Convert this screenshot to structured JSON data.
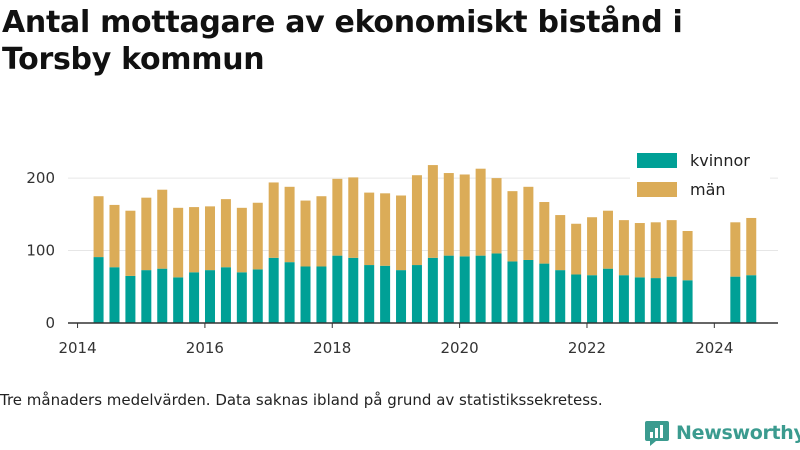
{
  "title": "Antal mottagare av ekonomiskt bistånd i Torsby kommun",
  "footnote": "Tre månaders medelvärden. Data saknas ibland på grund av statistikssekretess.",
  "brand": {
    "name": "Newsworthy",
    "icon": "newsworthy-logo-icon"
  },
  "colors": {
    "kvinnor": "#00a096",
    "man": "#dbac58",
    "axis": "#333333",
    "grid": "#e6e6e6"
  },
  "chart_data": {
    "type": "bar",
    "stacked": true,
    "x": [
      2014.33,
      2014.58,
      2014.83,
      2015.08,
      2015.33,
      2015.58,
      2015.83,
      2016.08,
      2016.33,
      2016.58,
      2016.83,
      2017.08,
      2017.33,
      2017.58,
      2017.83,
      2018.08,
      2018.33,
      2018.58,
      2018.83,
      2019.08,
      2019.33,
      2019.58,
      2019.83,
      2020.08,
      2020.33,
      2020.58,
      2020.83,
      2021.08,
      2021.33,
      2021.58,
      2021.83,
      2022.08,
      2022.33,
      2022.58,
      2022.83,
      2023.08,
      2023.33,
      2023.58,
      2024.33,
      2024.58
    ],
    "series": [
      {
        "name": "kvinnor",
        "values": [
          91,
          77,
          65,
          73,
          75,
          63,
          70,
          73,
          77,
          70,
          74,
          90,
          84,
          78,
          78,
          93,
          90,
          80,
          79,
          73,
          80,
          90,
          93,
          92,
          93,
          96,
          85,
          87,
          82,
          73,
          67,
          66,
          75,
          66,
          63,
          62,
          64,
          59,
          64,
          66
        ]
      },
      {
        "name": "män",
        "values": [
          84,
          86,
          90,
          100,
          109,
          96,
          90,
          88,
          94,
          89,
          92,
          104,
          104,
          91,
          97,
          106,
          111,
          100,
          100,
          103,
          124,
          128,
          114,
          113,
          120,
          104,
          97,
          101,
          85,
          76,
          70,
          80,
          80,
          76,
          75,
          77,
          78,
          68,
          75,
          79
        ]
      }
    ],
    "legend": [
      "kvinnor",
      "män"
    ],
    "legend_position": "top-right",
    "xticks": [
      2014,
      2016,
      2018,
      2020,
      2022,
      2024
    ],
    "yticks": [
      0,
      100,
      200
    ],
    "xlim": [
      2013.85,
      2025.0
    ],
    "ylim": [
      0,
      225
    ],
    "grid": "horizontal"
  }
}
